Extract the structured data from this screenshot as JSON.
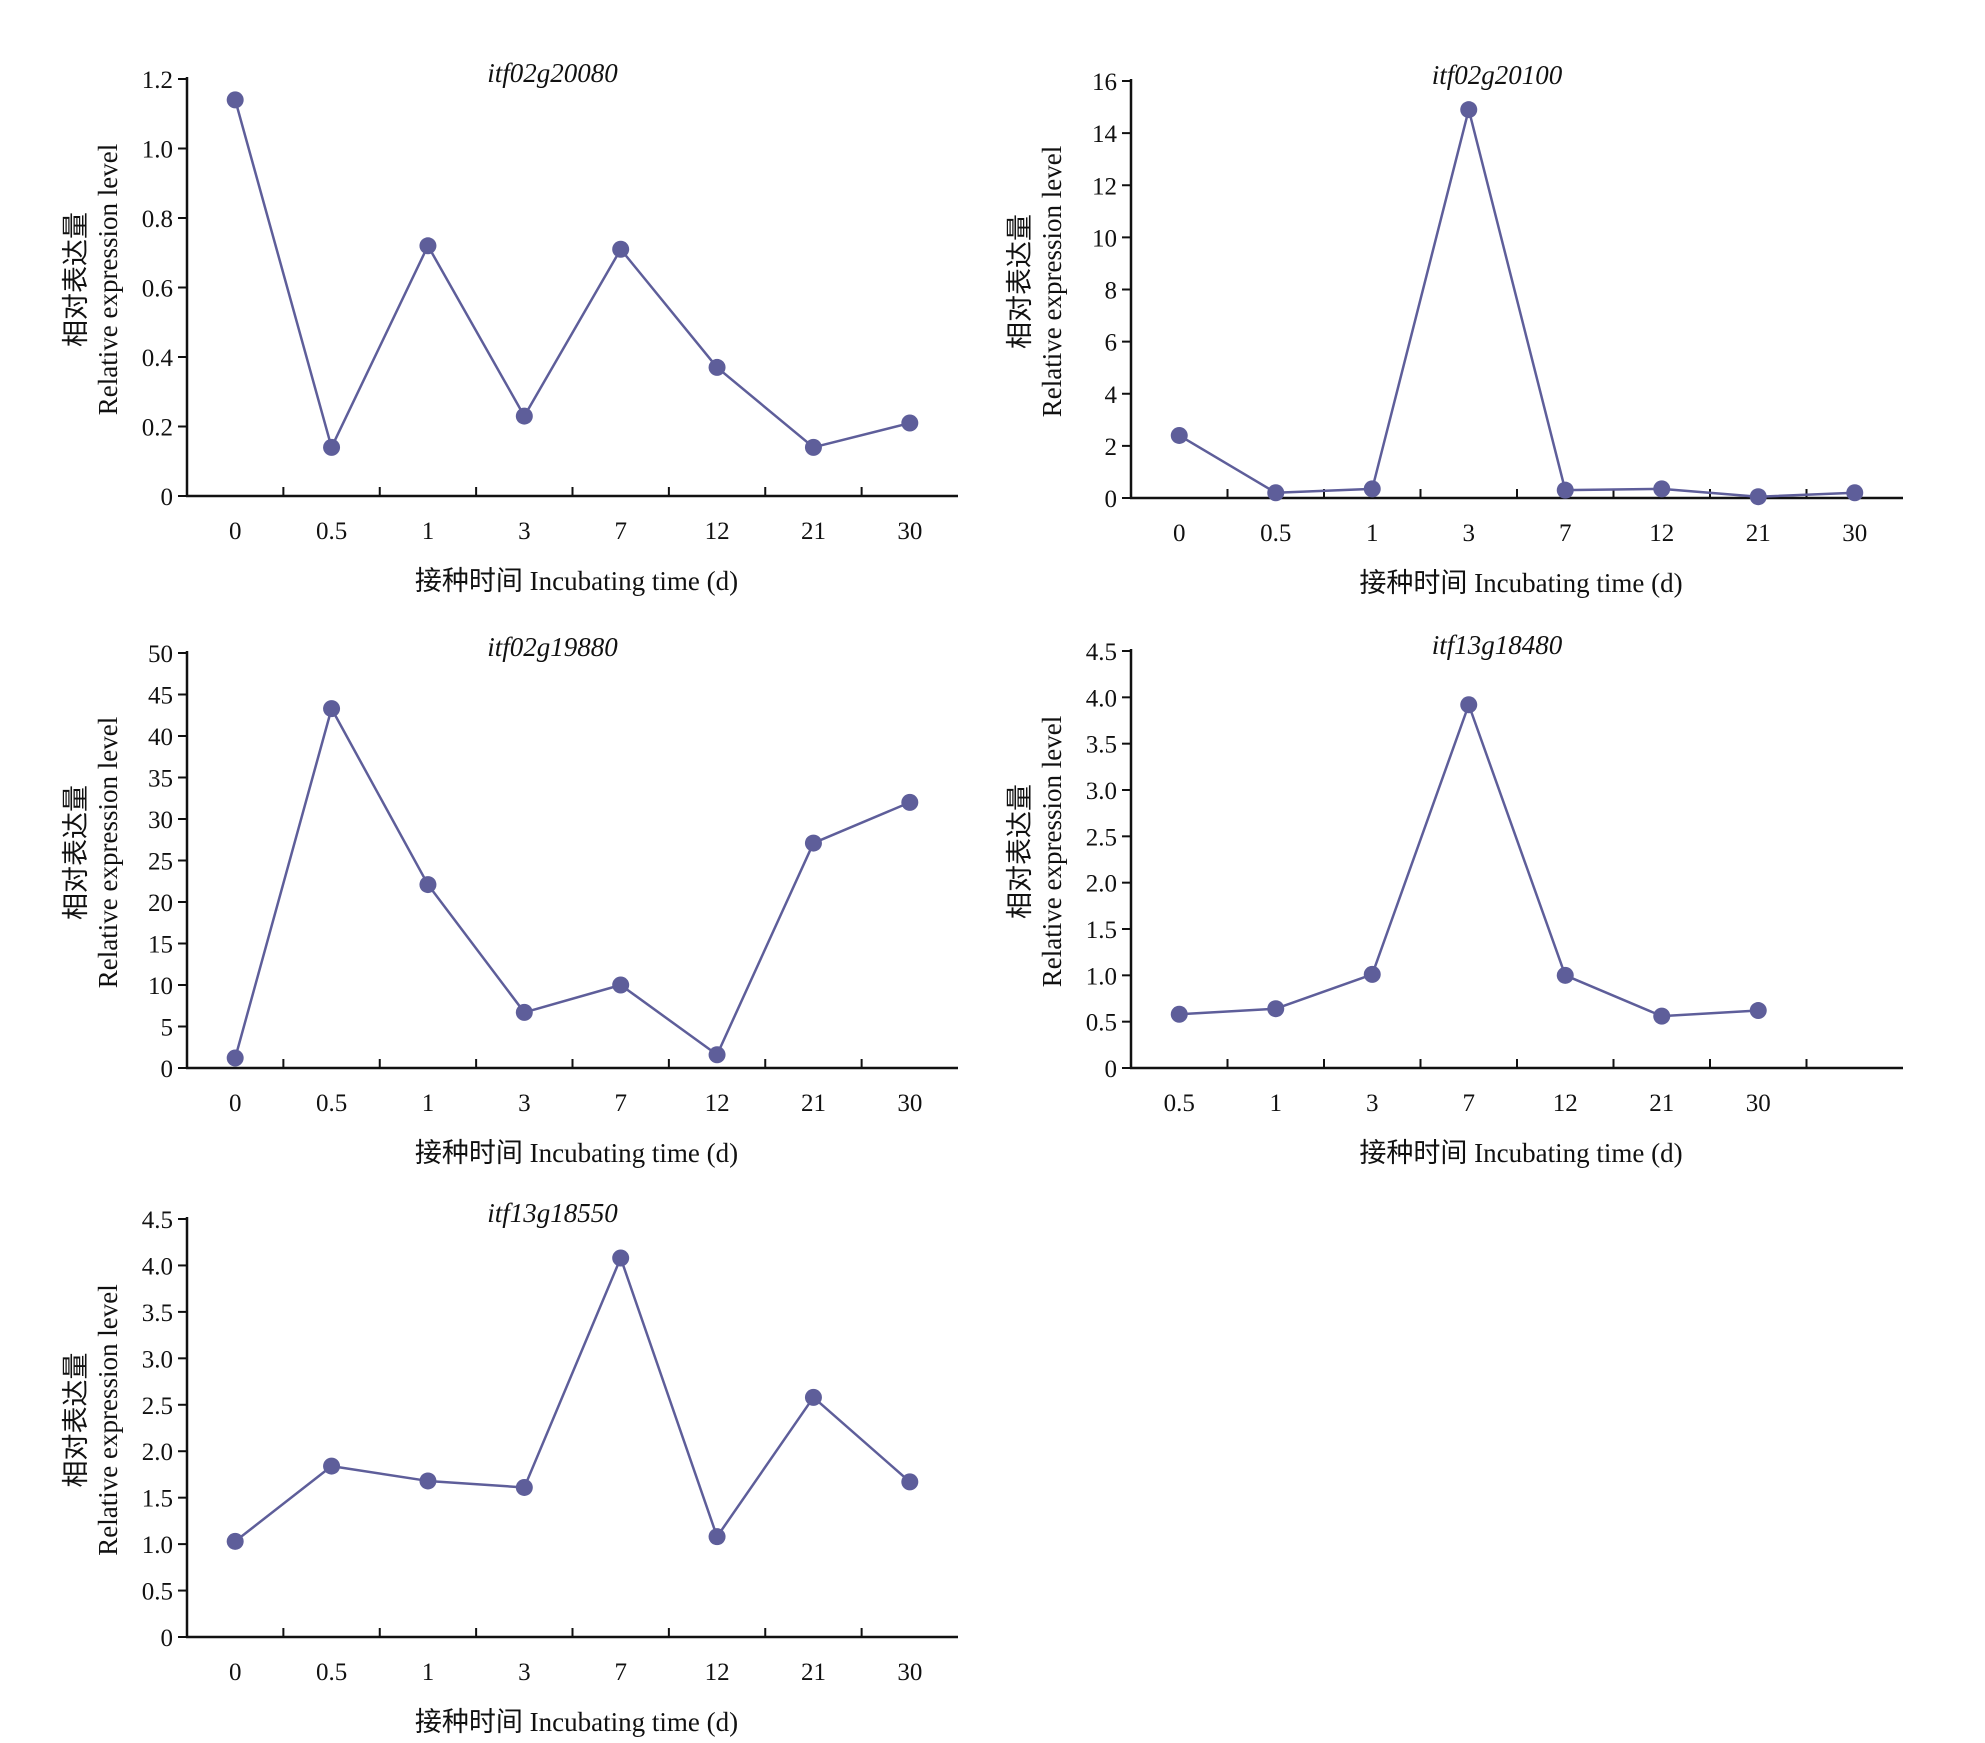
{
  "chart_data": [
    {
      "type": "line",
      "title": "itf02g20080",
      "xlabel": "接种时间 Incubating time (d)",
      "ylabel_zh": "相对表达量",
      "ylabel_en": "Relative expression level",
      "categories": [
        "0",
        "0.5",
        "1",
        "3",
        "7",
        "12",
        "21",
        "30"
      ],
      "values": [
        1.14,
        0.14,
        0.72,
        0.23,
        0.71,
        0.37,
        0.14,
        0.21
      ],
      "ylim": [
        0,
        1.2
      ],
      "yticks": [
        0,
        0.2,
        0.4,
        0.6,
        0.8,
        1.0,
        1.2
      ],
      "ytick_labels": [
        "0",
        "0.2",
        "0.4",
        "0.6",
        "0.8",
        "1.0",
        "1.2"
      ],
      "grid": false,
      "legend": "none"
    },
    {
      "type": "line",
      "title": "itf02g20100",
      "xlabel": "接种时间 Incubating time (d)",
      "ylabel_zh": "相对表达量",
      "ylabel_en": "Relative expression level",
      "categories": [
        "0",
        "0.5",
        "1",
        "3",
        "7",
        "12",
        "21",
        "30"
      ],
      "values": [
        2.4,
        0.2,
        0.35,
        14.9,
        0.3,
        0.35,
        0.05,
        0.2
      ],
      "ylim": [
        0,
        16
      ],
      "yticks": [
        0,
        2,
        4,
        6,
        8,
        10,
        12,
        14,
        16
      ],
      "ytick_labels": [
        "0",
        "2",
        "4",
        "6",
        "8",
        "10",
        "12",
        "14",
        "16"
      ],
      "grid": false,
      "legend": "none"
    },
    {
      "type": "line",
      "title": "itf02g19880",
      "xlabel": "接种时间 Incubating time (d)",
      "ylabel_zh": "相对表达量",
      "ylabel_en": "Relative expression level",
      "categories": [
        "0",
        "0.5",
        "1",
        "3",
        "7",
        "12",
        "21",
        "30"
      ],
      "values": [
        1.2,
        43.3,
        22.1,
        6.7,
        10.0,
        1.6,
        27.1,
        32.0
      ],
      "ylim": [
        0,
        50
      ],
      "yticks": [
        0,
        5,
        10,
        15,
        20,
        25,
        30,
        35,
        40,
        45,
        50
      ],
      "ytick_labels": [
        "0",
        "5",
        "10",
        "15",
        "20",
        "25",
        "30",
        "35",
        "40",
        "45",
        "50"
      ],
      "grid": false,
      "legend": "none"
    },
    {
      "type": "line",
      "title": "itf13g18480",
      "xlabel": "接种时间 Incubating time (d)",
      "ylabel_zh": "相对表达量",
      "ylabel_en": "Relative expression level",
      "categories": [
        "0.5",
        "1",
        "3",
        "7",
        "12",
        "21",
        "30",
        ""
      ],
      "values": [
        0.58,
        0.64,
        1.01,
        3.92,
        1.0,
        0.56,
        0.62,
        null
      ],
      "ylim": [
        0,
        4.5
      ],
      "yticks": [
        0,
        0.5,
        1.0,
        1.5,
        2.0,
        2.5,
        3.0,
        3.5,
        4.0,
        4.5
      ],
      "ytick_labels": [
        "0",
        "0.5",
        "1.0",
        "1.5",
        "2.0",
        "2.5",
        "3.0",
        "3.5",
        "4.0",
        "4.5"
      ],
      "grid": false,
      "legend": "none"
    },
    {
      "type": "line",
      "title": "itf13g18550",
      "xlabel": "接种时间 Incubating time (d)",
      "ylabel_zh": "相对表达量",
      "ylabel_en": "Relative expression level",
      "categories": [
        "0",
        "0.5",
        "1",
        "3",
        "7",
        "12",
        "21",
        "30"
      ],
      "values": [
        1.03,
        1.84,
        1.68,
        1.61,
        4.08,
        1.08,
        2.58,
        1.67
      ],
      "ylim": [
        0,
        4.5
      ],
      "yticks": [
        0,
        0.5,
        1.0,
        1.5,
        2.0,
        2.5,
        3.0,
        3.5,
        4.0,
        4.5
      ],
      "ytick_labels": [
        "0",
        "0.5",
        "1.0",
        "1.5",
        "2.0",
        "2.5",
        "3.0",
        "3.5",
        "4.0",
        "4.5"
      ],
      "grid": false,
      "legend": "none"
    }
  ],
  "colors": {
    "series": "#5e5e9a",
    "axis": "#111111",
    "background": "#ffffff"
  }
}
